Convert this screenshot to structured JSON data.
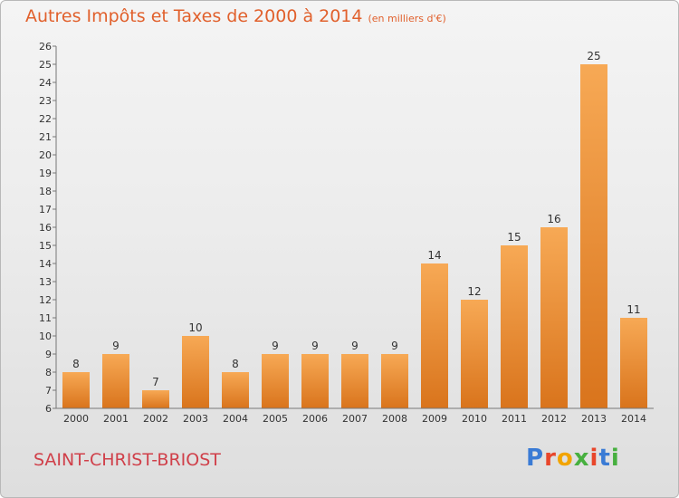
{
  "header": {
    "title": "Autres Impôts et Taxes de 2000 à 2014",
    "subtitle": "(en milliers d'€)"
  },
  "footer": {
    "commune": "SAINT-CHRIST-BRIOST",
    "brand": "Proxiti",
    "brand_colors": [
      "#3a7bd5",
      "#e8462b",
      "#f2a400",
      "#47b03f",
      "#e8462b",
      "#3a7bd5",
      "#47b03f"
    ]
  },
  "colors": {
    "bar_light": "#f7a955",
    "bar_dark": "#d9741c",
    "title": "#e1602c",
    "commune": "#d0404a"
  },
  "chart_data": {
    "type": "bar",
    "categories": [
      "2000",
      "2001",
      "2002",
      "2003",
      "2004",
      "2005",
      "2006",
      "2007",
      "2008",
      "2009",
      "2010",
      "2011",
      "2012",
      "2013",
      "2014"
    ],
    "values": [
      8,
      9,
      7,
      10,
      8,
      9,
      9,
      9,
      9,
      14,
      12,
      15,
      16,
      25,
      11
    ],
    "data_labels": [
      "8",
      "9",
      "7",
      "10",
      "8",
      "9",
      "9",
      "9",
      "9",
      "14",
      "12",
      "15",
      "16",
      "25",
      "11"
    ],
    "y_ticks": [
      "6",
      "7",
      "8",
      "9",
      "10",
      "11",
      "12",
      "13",
      "14",
      "15",
      "16",
      "17",
      "18",
      "19",
      "20",
      "21",
      "22",
      "23",
      "24",
      "25",
      "26"
    ],
    "ylim": [
      6,
      26
    ],
    "grid": false,
    "legend": "none"
  }
}
